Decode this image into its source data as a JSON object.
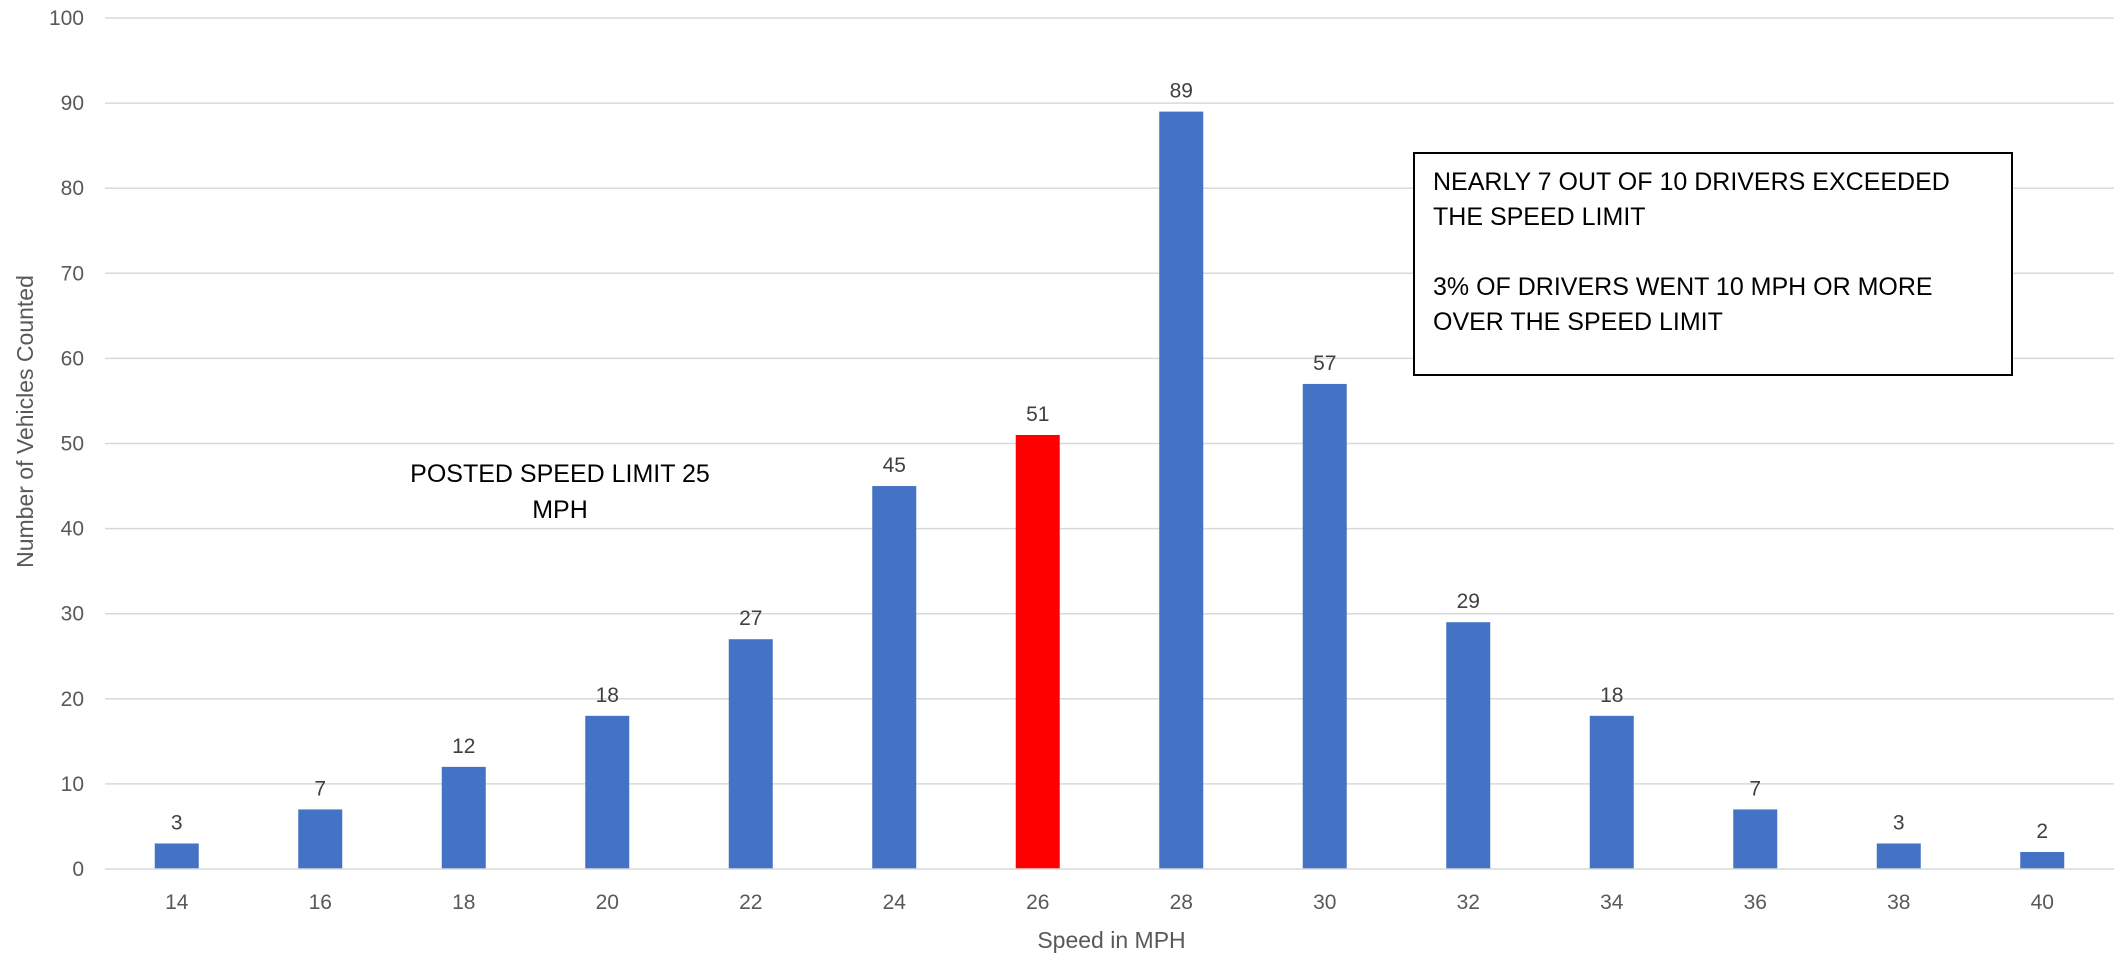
{
  "chart_data": {
    "type": "bar",
    "categories": [
      "14",
      "16",
      "18",
      "20",
      "22",
      "24",
      "26",
      "28",
      "30",
      "32",
      "34",
      "36",
      "38",
      "40"
    ],
    "values": [
      3,
      7,
      12,
      18,
      27,
      45,
      51,
      89,
      57,
      29,
      18,
      7,
      3,
      2
    ],
    "highlight_category": "26",
    "xlabel": "Speed in MPH",
    "ylabel": "Number of Vehicles Counted",
    "ylim": [
      0,
      100
    ],
    "yticks": [
      0,
      10,
      20,
      30,
      40,
      50,
      60,
      70,
      80,
      90,
      100
    ],
    "grid": true,
    "data_labels": true,
    "colors": {
      "bar": "#4472C4",
      "highlight": "#FF0000",
      "grid": "#D9D9D9"
    }
  },
  "annotations": {
    "limit_note": "POSTED SPEED LIMIT 25 MPH",
    "stats_line1": "NEARLY 7 OUT OF 10 DRIVERS EXCEEDED THE SPEED LIMIT",
    "stats_line2": "3% OF DRIVERS WENT 10 MPH OR MORE OVER THE SPEED LIMIT"
  }
}
